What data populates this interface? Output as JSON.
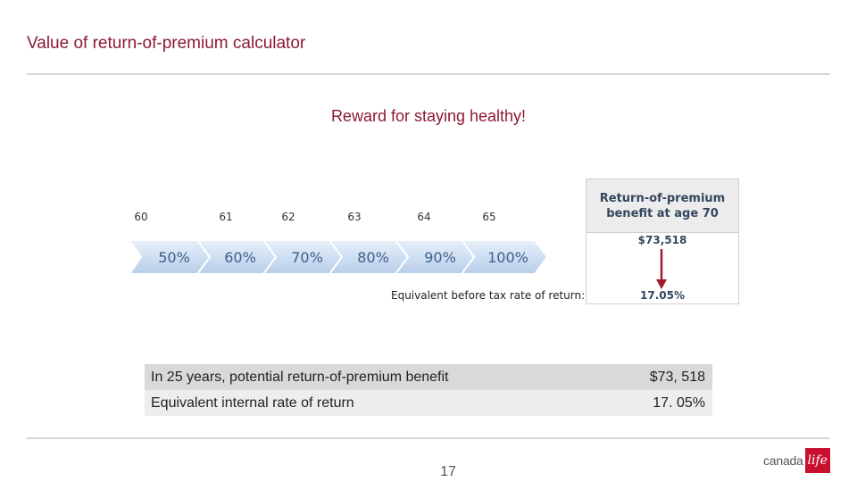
{
  "slide": {
    "title": "Value of return-of-premium calculator",
    "subtitle": "Reward for staying healthy!",
    "page_number": "17"
  },
  "timeline": {
    "ages": [
      "60",
      "61",
      "62",
      "63",
      "64",
      "65"
    ],
    "steps": [
      "50%",
      "60%",
      "70%",
      "80%",
      "90%",
      "100%"
    ],
    "equivalent_label": "Equivalent before tax rate of return:"
  },
  "benefit_box": {
    "header_line1": "Return-of-premium",
    "header_line2": "benefit at age 70",
    "amount": "$73,518",
    "rate": "17.05%",
    "arrow_color": "#a1192c"
  },
  "summary": {
    "rows": [
      {
        "label": "In 25 years, potential return-of-premium benefit",
        "value": "$73, 518"
      },
      {
        "label": "Equivalent internal rate of return",
        "value": "17. 05%"
      }
    ]
  },
  "logo": {
    "text": "canada",
    "mark": "life",
    "brand_color": "#c8102e"
  },
  "colors": {
    "title": "#8c1a2e",
    "chevron_fill": "#d5e3f3",
    "chevron_text": "#3f5f8c"
  }
}
